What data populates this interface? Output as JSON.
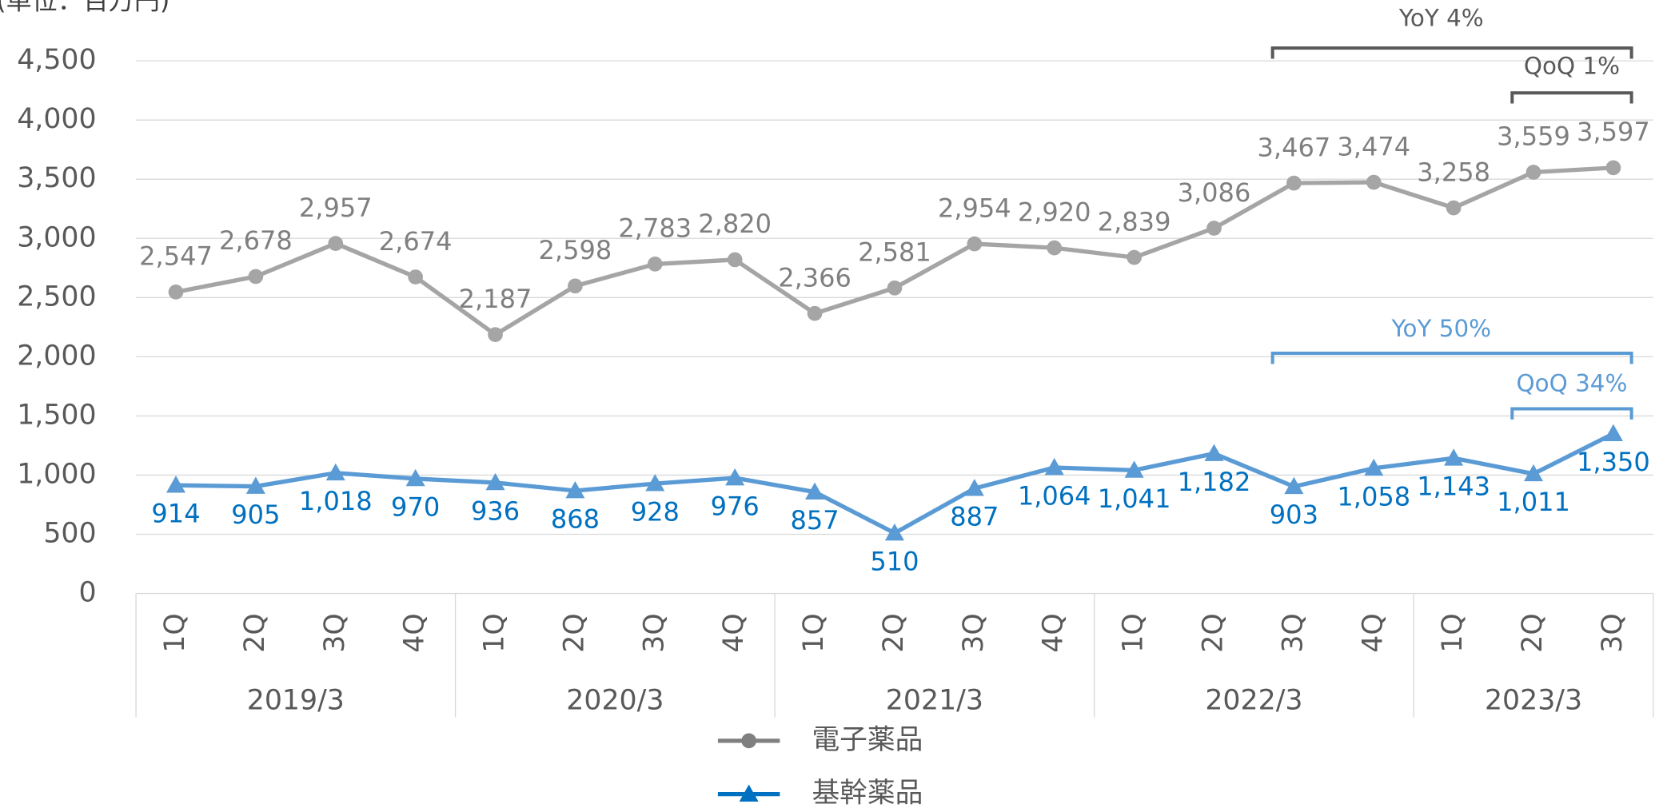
{
  "chart_data": {
    "type": "line",
    "unit_label": "(単位：百万円)",
    "category_groups": [
      {
        "name": "2019/3",
        "categories": [
          "1Q",
          "2Q",
          "3Q",
          "4Q"
        ]
      },
      {
        "name": "2020/3",
        "categories": [
          "1Q",
          "2Q",
          "3Q",
          "4Q"
        ]
      },
      {
        "name": "2021/3",
        "categories": [
          "1Q",
          "2Q",
          "3Q",
          "4Q"
        ]
      },
      {
        "name": "2022/3",
        "categories": [
          "1Q",
          "2Q",
          "3Q",
          "4Q"
        ]
      },
      {
        "name": "2023/3",
        "categories": [
          "1Q",
          "2Q",
          "3Q"
        ]
      }
    ],
    "series": [
      {
        "name": "電子薬品",
        "color": "#a5a5a5",
        "label_color": "#7f7f7f",
        "marker": "circle",
        "values": [
          2547,
          2678,
          2957,
          2674,
          2187,
          2598,
          2783,
          2820,
          2366,
          2581,
          2954,
          2920,
          2839,
          3086,
          3467,
          3474,
          3258,
          3559,
          3597
        ],
        "value_labels": [
          "2,547",
          "2,678",
          "2,957",
          "2,674",
          "2,187",
          "2,598",
          "2,783",
          "2,820",
          "2,366",
          "2,581",
          "2,954",
          "2,920",
          "2,839",
          "3,086",
          "3,467",
          "3,474",
          "3,258",
          "3,559",
          "3,597"
        ]
      },
      {
        "name": "基幹薬品",
        "color": "#5b9bd5",
        "label_color": "#0070c0",
        "marker": "triangle",
        "values": [
          914,
          905,
          1018,
          970,
          936,
          868,
          928,
          976,
          857,
          510,
          887,
          1064,
          1041,
          1182,
          903,
          1058,
          1143,
          1011,
          1350
        ],
        "value_labels": [
          "914",
          "905",
          "1,018",
          "970",
          "936",
          "868",
          "928",
          "976",
          "857",
          "510",
          "887",
          "1,064",
          "1,041",
          "1,182",
          "903",
          "1,058",
          "1,143",
          "1,011",
          "1,350"
        ]
      }
    ],
    "ylim": [
      0,
      4500
    ],
    "yticks": [
      0,
      500,
      {
        "value": 1000,
        "label": "1,000"
      },
      {
        "value": 1500,
        "label": "1,500"
      },
      {
        "value": 2000,
        "label": "2,000"
      },
      {
        "value": 2500,
        "label": "2,500"
      },
      {
        "value": 3000,
        "label": "3,000"
      },
      {
        "value": 3500,
        "label": "3,500"
      },
      {
        "value": 4000,
        "label": "4,000"
      },
      {
        "value": 4500,
        "label": "4,500"
      }
    ],
    "grid": true,
    "legend": "bottom",
    "annotations": [
      {
        "text": "YoY 4%",
        "color": "#595959"
      },
      {
        "text": "QoQ 1%",
        "color": "#595959"
      },
      {
        "text": "YoY 50%",
        "color": "#5b9bd5"
      },
      {
        "text": "QoQ 34%",
        "color": "#5b9bd5"
      }
    ]
  }
}
